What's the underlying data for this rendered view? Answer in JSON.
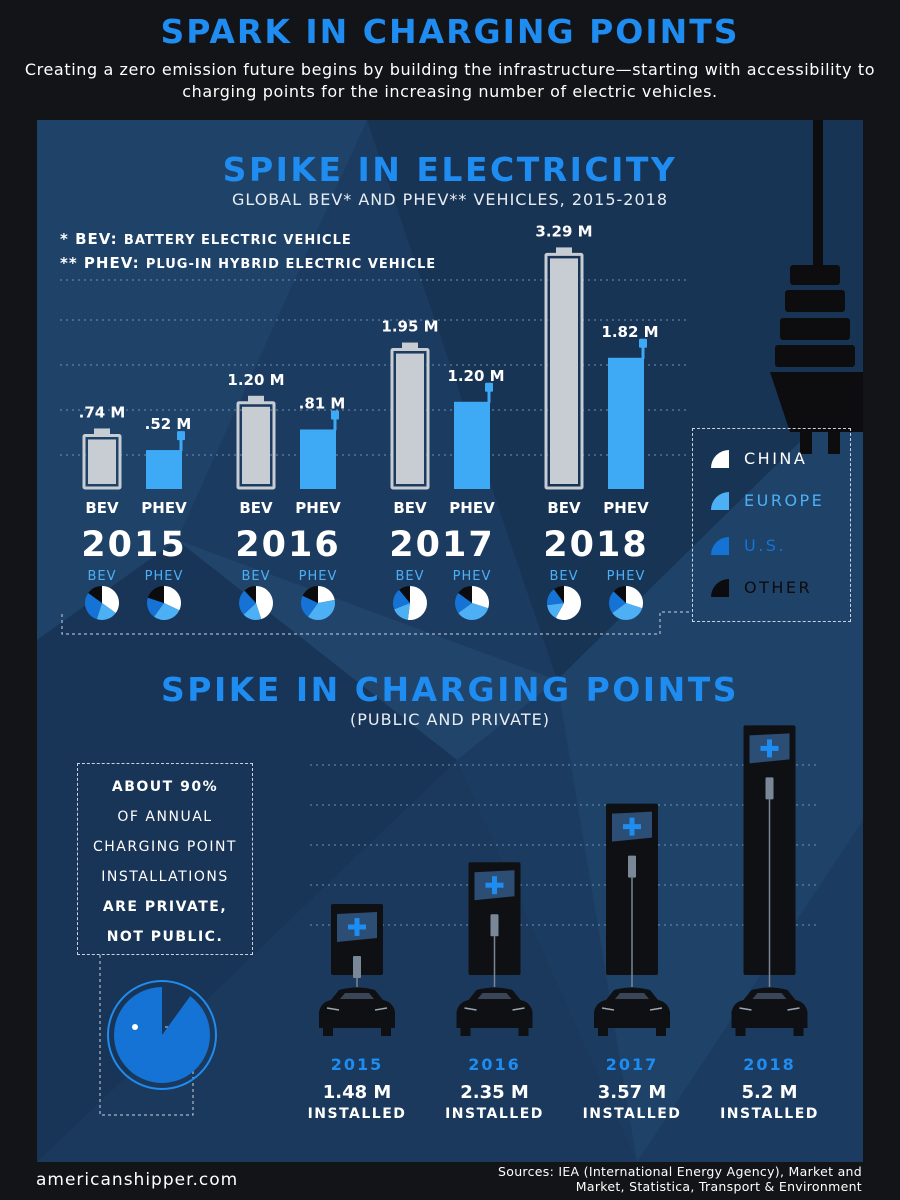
{
  "header": {
    "title": "SPARK IN CHARGING POINTS",
    "intro": "Creating a zero emission future begins by building the infrastructure—starting with accessibility to charging points for the increasing number of electric vehicles."
  },
  "electricity": {
    "title": "SPIKE IN ELECTRICITY",
    "subtitle": "GLOBAL BEV* AND PHEV** VEHICLES, 2015-2018",
    "notes": [
      {
        "mark": "* BEV:",
        "text": "BATTERY ELECTRIC VEHICLE"
      },
      {
        "mark": "** PHEV:",
        "text": "PLUG-IN HYBRID ELECTRIC VEHICLE"
      }
    ]
  },
  "legend": [
    {
      "label": "CHINA",
      "color": "#ffffff"
    },
    {
      "label": "EUROPE",
      "color": "#4db0f5"
    },
    {
      "label": "U.S.",
      "color": "#1473d4"
    },
    {
      "label": "OTHER",
      "color": "#0c0c0f"
    }
  ],
  "charging": {
    "title": "SPIKE IN CHARGING POINTS",
    "subtitle": "(PUBLIC AND PRIVATE)",
    "callout": [
      "ABOUT 90%",
      "OF ANNUAL",
      "CHARGING POINT",
      "INSTALLATIONS",
      "ARE PRIVATE,",
      "NOT PUBLIC."
    ],
    "private_share_percent": 90
  },
  "footer": {
    "brand": "americanshipper.com",
    "sources": "Sources: IEA (International Energy Agency), Market and Market, Statistica, Transport & Environment"
  },
  "colors": {
    "accent": "#1e8cf0",
    "panel": "#1c3b60",
    "bev_fill": "#c8cdd3",
    "phev_fill": "#3ea9f5",
    "china": "#ffffff",
    "europe": "#4db0f5",
    "us": "#1473d4",
    "other": "#0c0c0f"
  },
  "chart_data": [
    {
      "type": "bar",
      "title": "SPIKE IN ELECTRICITY",
      "subtitle": "GLOBAL BEV* AND PHEV** VEHICLES, 2015-2018",
      "categories": [
        "2015",
        "2016",
        "2017",
        "2018"
      ],
      "unit": "M",
      "series": [
        {
          "name": "BEV",
          "values": [
            0.74,
            1.2,
            1.95,
            3.29
          ],
          "labels": [
            ".74 M",
            "1.20 M",
            "1.95 M",
            "3.29 M"
          ]
        },
        {
          "name": "PHEV",
          "values": [
            0.52,
            0.81,
            1.2,
            1.82
          ],
          "labels": [
            ".52 M",
            ".81 M",
            "1.20 M",
            "1.82 M"
          ]
        }
      ]
    },
    {
      "type": "pie",
      "regions": [
        "CHINA",
        "EUROPE",
        "U.S.",
        "OTHER"
      ],
      "pies": [
        {
          "year": "2015",
          "label": "BEV",
          "shares": [
            0.35,
            0.2,
            0.3,
            0.15
          ]
        },
        {
          "year": "2015",
          "label": "PHEV",
          "shares": [
            0.32,
            0.28,
            0.2,
            0.2
          ]
        },
        {
          "year": "2016",
          "label": "BEV",
          "shares": [
            0.45,
            0.18,
            0.25,
            0.12
          ]
        },
        {
          "year": "2016",
          "label": "PHEV",
          "shares": [
            0.22,
            0.38,
            0.22,
            0.18
          ]
        },
        {
          "year": "2017",
          "label": "BEV",
          "shares": [
            0.52,
            0.17,
            0.2,
            0.11
          ]
        },
        {
          "year": "2017",
          "label": "PHEV",
          "shares": [
            0.3,
            0.35,
            0.2,
            0.15
          ]
        },
        {
          "year": "2018",
          "label": "BEV",
          "shares": [
            0.58,
            0.15,
            0.17,
            0.1
          ]
        },
        {
          "year": "2018",
          "label": "PHEV",
          "shares": [
            0.3,
            0.35,
            0.22,
            0.13
          ]
        }
      ]
    },
    {
      "type": "bar",
      "title": "SPIKE IN CHARGING POINTS",
      "subtitle": "(PUBLIC AND PRIVATE)",
      "categories": [
        "2015",
        "2016",
        "2017",
        "2018"
      ],
      "unit": "M",
      "series": [
        {
          "values": [
            1.48,
            2.35,
            3.57,
            5.2
          ],
          "labels": [
            "1.48 M",
            "2.35 M",
            "3.57 M",
            "5.2 M"
          ],
          "suffix": "INSTALLED"
        }
      ]
    }
  ]
}
